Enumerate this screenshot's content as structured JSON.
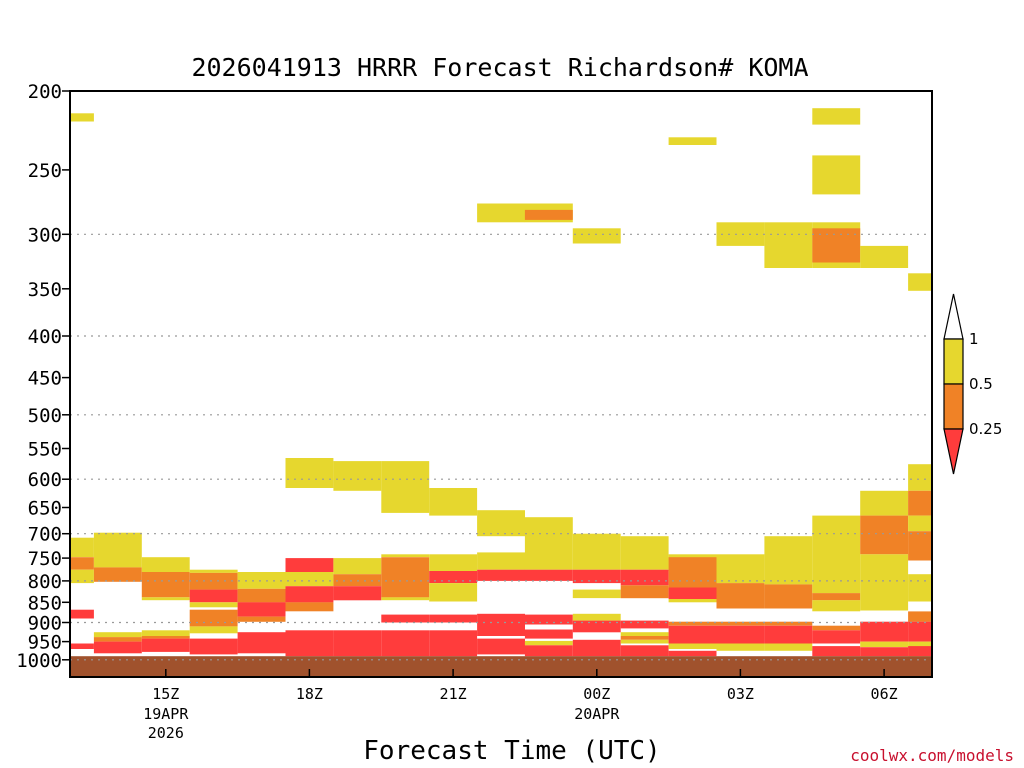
{
  "chart_data": {
    "type": "heatmap",
    "title": "2026041913 HRRR Forecast Richardson# KOMA",
    "xlabel": "Forecast Time (UTC)",
    "ylabel": "",
    "credit": "coolwx.com/models",
    "y_axis": {
      "scale": "log-pressure",
      "range_hPa": [
        1050,
        200
      ],
      "ticks": [
        "200",
        "250",
        "300",
        "350",
        "400",
        "450",
        "500",
        "550",
        "600",
        "650",
        "700",
        "750",
        "800",
        "850",
        "900",
        "950",
        "1000"
      ],
      "gridlines_hPa": [
        300,
        400,
        500,
        600,
        700,
        800,
        900,
        1000
      ]
    },
    "x_axis": {
      "range_hours": [
        13,
        31
      ],
      "ticks": [
        {
          "h": 15,
          "label": "15Z",
          "sub": [
            "19APR",
            "2026"
          ]
        },
        {
          "h": 18,
          "label": "18Z",
          "sub": []
        },
        {
          "h": 21,
          "label": "21Z",
          "sub": []
        },
        {
          "h": 24,
          "label": "00Z",
          "sub": [
            "20APR"
          ]
        },
        {
          "h": 27,
          "label": "03Z",
          "sub": []
        },
        {
          "h": 30,
          "label": "06Z",
          "sub": []
        }
      ]
    },
    "grid": true,
    "legend": {
      "position": "right",
      "levels": [
        "1",
        "0.5",
        "0.25"
      ],
      "bins": [
        {
          "range": "0.5-1",
          "color": "#e6d72e"
        },
        {
          "range": "0.25-0.5",
          "color": "#f08226"
        },
        {
          "range": "<0.25",
          "color": "#ff3c3c"
        }
      ]
    },
    "colors": {
      "yellow": "#e6d72e",
      "orange": "#f08226",
      "red": "#ff3c3c",
      "ground": "#a0522d"
    },
    "cells": [
      {
        "t0": 13.0,
        "t1": 13.5,
        "p0": 213,
        "p1": 218,
        "c": "yellow"
      },
      {
        "t0": 13.0,
        "t1": 13.5,
        "p0": 708,
        "p1": 748,
        "c": "yellow"
      },
      {
        "t0": 13.0,
        "t1": 13.5,
        "p0": 748,
        "p1": 775,
        "c": "orange"
      },
      {
        "t0": 13.0,
        "t1": 13.5,
        "p0": 775,
        "p1": 805,
        "c": "yellow"
      },
      {
        "t0": 13.0,
        "t1": 13.5,
        "p0": 868,
        "p1": 890,
        "c": "red"
      },
      {
        "t0": 13.0,
        "t1": 13.5,
        "p0": 955,
        "p1": 970,
        "c": "red"
      },
      {
        "t0": 13.5,
        "t1": 14.5,
        "p0": 698,
        "p1": 770,
        "c": "yellow"
      },
      {
        "t0": 13.5,
        "t1": 14.5,
        "p0": 770,
        "p1": 802,
        "c": "orange"
      },
      {
        "t0": 13.5,
        "t1": 14.5,
        "p0": 925,
        "p1": 938,
        "c": "yellow"
      },
      {
        "t0": 13.5,
        "t1": 14.5,
        "p0": 938,
        "p1": 950,
        "c": "orange"
      },
      {
        "t0": 13.5,
        "t1": 14.5,
        "p0": 950,
        "p1": 982,
        "c": "red"
      },
      {
        "t0": 14.5,
        "t1": 15.5,
        "p0": 748,
        "p1": 780,
        "c": "yellow"
      },
      {
        "t0": 14.5,
        "t1": 15.5,
        "p0": 780,
        "p1": 838,
        "c": "orange"
      },
      {
        "t0": 14.5,
        "t1": 15.5,
        "p0": 838,
        "p1": 845,
        "c": "yellow"
      },
      {
        "t0": 14.5,
        "t1": 15.5,
        "p0": 920,
        "p1": 935,
        "c": "yellow"
      },
      {
        "t0": 14.5,
        "t1": 15.5,
        "p0": 935,
        "p1": 942,
        "c": "orange"
      },
      {
        "t0": 14.5,
        "t1": 15.5,
        "p0": 942,
        "p1": 978,
        "c": "red"
      },
      {
        "t0": 15.5,
        "t1": 16.5,
        "p0": 775,
        "p1": 782,
        "c": "yellow"
      },
      {
        "t0": 15.5,
        "t1": 16.5,
        "p0": 782,
        "p1": 820,
        "c": "orange"
      },
      {
        "t0": 15.5,
        "t1": 16.5,
        "p0": 820,
        "p1": 850,
        "c": "red"
      },
      {
        "t0": 15.5,
        "t1": 16.5,
        "p0": 850,
        "p1": 862,
        "c": "yellow"
      },
      {
        "t0": 15.5,
        "t1": 16.5,
        "p0": 868,
        "p1": 910,
        "c": "orange"
      },
      {
        "t0": 15.5,
        "t1": 16.5,
        "p0": 910,
        "p1": 928,
        "c": "yellow"
      },
      {
        "t0": 15.5,
        "t1": 16.5,
        "p0": 942,
        "p1": 985,
        "c": "red"
      },
      {
        "t0": 16.5,
        "t1": 17.5,
        "p0": 780,
        "p1": 818,
        "c": "yellow"
      },
      {
        "t0": 16.5,
        "t1": 17.5,
        "p0": 818,
        "p1": 850,
        "c": "orange"
      },
      {
        "t0": 16.5,
        "t1": 17.5,
        "p0": 850,
        "p1": 885,
        "c": "red"
      },
      {
        "t0": 16.5,
        "t1": 17.5,
        "p0": 885,
        "p1": 898,
        "c": "orange"
      },
      {
        "t0": 16.5,
        "t1": 17.5,
        "p0": 925,
        "p1": 982,
        "c": "red"
      },
      {
        "t0": 17.5,
        "t1": 18.5,
        "p0": 565,
        "p1": 615,
        "c": "yellow"
      },
      {
        "t0": 17.5,
        "t1": 18.5,
        "p0": 750,
        "p1": 780,
        "c": "red"
      },
      {
        "t0": 17.5,
        "t1": 18.5,
        "p0": 780,
        "p1": 812,
        "c": "yellow"
      },
      {
        "t0": 17.5,
        "t1": 18.5,
        "p0": 812,
        "p1": 850,
        "c": "red"
      },
      {
        "t0": 17.5,
        "t1": 18.5,
        "p0": 850,
        "p1": 872,
        "c": "orange"
      },
      {
        "t0": 17.5,
        "t1": 18.5,
        "p0": 920,
        "p1": 990,
        "c": "red"
      },
      {
        "t0": 18.5,
        "t1": 19.5,
        "p0": 570,
        "p1": 620,
        "c": "yellow"
      },
      {
        "t0": 18.5,
        "t1": 19.5,
        "p0": 750,
        "p1": 785,
        "c": "yellow"
      },
      {
        "t0": 18.5,
        "t1": 19.5,
        "p0": 785,
        "p1": 812,
        "c": "orange"
      },
      {
        "t0": 18.5,
        "t1": 19.5,
        "p0": 812,
        "p1": 845,
        "c": "red"
      },
      {
        "t0": 18.5,
        "t1": 19.5,
        "p0": 920,
        "p1": 990,
        "c": "red"
      },
      {
        "t0": 19.5,
        "t1": 20.5,
        "p0": 570,
        "p1": 660,
        "c": "yellow"
      },
      {
        "t0": 19.5,
        "t1": 20.5,
        "p0": 742,
        "p1": 748,
        "c": "yellow"
      },
      {
        "t0": 19.5,
        "t1": 20.5,
        "p0": 748,
        "p1": 838,
        "c": "orange"
      },
      {
        "t0": 19.5,
        "t1": 20.5,
        "p0": 838,
        "p1": 845,
        "c": "yellow"
      },
      {
        "t0": 19.5,
        "t1": 20.5,
        "p0": 880,
        "p1": 900,
        "c": "red"
      },
      {
        "t0": 19.5,
        "t1": 20.5,
        "p0": 920,
        "p1": 990,
        "c": "red"
      },
      {
        "t0": 20.5,
        "t1": 21.5,
        "p0": 615,
        "p1": 665,
        "c": "yellow"
      },
      {
        "t0": 20.5,
        "t1": 21.5,
        "p0": 742,
        "p1": 778,
        "c": "yellow"
      },
      {
        "t0": 20.5,
        "t1": 21.5,
        "p0": 778,
        "p1": 805,
        "c": "red"
      },
      {
        "t0": 20.5,
        "t1": 21.5,
        "p0": 805,
        "p1": 848,
        "c": "yellow"
      },
      {
        "t0": 20.5,
        "t1": 21.5,
        "p0": 880,
        "p1": 900,
        "c": "red"
      },
      {
        "t0": 20.5,
        "t1": 21.5,
        "p0": 920,
        "p1": 990,
        "c": "red"
      },
      {
        "t0": 21.5,
        "t1": 22.5,
        "p0": 275,
        "p1": 290,
        "c": "yellow"
      },
      {
        "t0": 21.5,
        "t1": 22.5,
        "p0": 655,
        "p1": 705,
        "c": "yellow"
      },
      {
        "t0": 21.5,
        "t1": 22.5,
        "p0": 738,
        "p1": 775,
        "c": "yellow"
      },
      {
        "t0": 21.5,
        "t1": 22.5,
        "p0": 775,
        "p1": 800,
        "c": "red"
      },
      {
        "t0": 21.5,
        "t1": 22.5,
        "p0": 878,
        "p1": 935,
        "c": "red"
      },
      {
        "t0": 21.5,
        "t1": 22.5,
        "p0": 942,
        "p1": 985,
        "c": "red"
      },
      {
        "t0": 22.5,
        "t1": 23.5,
        "p0": 275,
        "p1": 290,
        "c": "yellow"
      },
      {
        "t0": 22.5,
        "t1": 23.5,
        "p0": 280,
        "p1": 288,
        "c": "orange"
      },
      {
        "t0": 22.5,
        "t1": 23.5,
        "p0": 668,
        "p1": 775,
        "c": "yellow"
      },
      {
        "t0": 22.5,
        "t1": 23.5,
        "p0": 775,
        "p1": 800,
        "c": "red"
      },
      {
        "t0": 22.5,
        "t1": 23.5,
        "p0": 880,
        "p1": 905,
        "c": "red"
      },
      {
        "t0": 22.5,
        "t1": 23.5,
        "p0": 918,
        "p1": 942,
        "c": "red"
      },
      {
        "t0": 22.5,
        "t1": 23.5,
        "p0": 948,
        "p1": 960,
        "c": "yellow"
      },
      {
        "t0": 22.5,
        "t1": 23.5,
        "p0": 960,
        "p1": 990,
        "c": "red"
      },
      {
        "t0": 23.5,
        "t1": 24.5,
        "p0": 295,
        "p1": 308,
        "c": "yellow"
      },
      {
        "t0": 23.5,
        "t1": 24.5,
        "p0": 700,
        "p1": 775,
        "c": "yellow"
      },
      {
        "t0": 23.5,
        "t1": 24.5,
        "p0": 775,
        "p1": 805,
        "c": "red"
      },
      {
        "t0": 23.5,
        "t1": 24.5,
        "p0": 820,
        "p1": 840,
        "c": "yellow"
      },
      {
        "t0": 23.5,
        "t1": 24.5,
        "p0": 878,
        "p1": 895,
        "c": "yellow"
      },
      {
        "t0": 23.5,
        "t1": 24.5,
        "p0": 895,
        "p1": 925,
        "c": "red"
      },
      {
        "t0": 23.5,
        "t1": 24.5,
        "p0": 945,
        "p1": 990,
        "c": "red"
      },
      {
        "t0": 24.5,
        "t1": 25.5,
        "p0": 705,
        "p1": 775,
        "c": "yellow"
      },
      {
        "t0": 24.5,
        "t1": 25.5,
        "p0": 775,
        "p1": 810,
        "c": "red"
      },
      {
        "t0": 24.5,
        "t1": 25.5,
        "p0": 810,
        "p1": 840,
        "c": "orange"
      },
      {
        "t0": 24.5,
        "t1": 25.5,
        "p0": 895,
        "p1": 915,
        "c": "red"
      },
      {
        "t0": 24.5,
        "t1": 25.5,
        "p0": 925,
        "p1": 935,
        "c": "yellow"
      },
      {
        "t0": 24.5,
        "t1": 25.5,
        "p0": 935,
        "p1": 945,
        "c": "orange"
      },
      {
        "t0": 24.5,
        "t1": 25.5,
        "p0": 945,
        "p1": 955,
        "c": "yellow"
      },
      {
        "t0": 24.5,
        "t1": 25.5,
        "p0": 960,
        "p1": 990,
        "c": "red"
      },
      {
        "t0": 25.5,
        "t1": 26.5,
        "p0": 228,
        "p1": 233,
        "c": "yellow"
      },
      {
        "t0": 25.5,
        "t1": 26.5,
        "p0": 742,
        "p1": 778,
        "c": "yellow"
      },
      {
        "t0": 25.5,
        "t1": 26.5,
        "p0": 748,
        "p1": 815,
        "c": "orange"
      },
      {
        "t0": 25.5,
        "t1": 26.5,
        "p0": 815,
        "p1": 842,
        "c": "red"
      },
      {
        "t0": 25.5,
        "t1": 26.5,
        "p0": 842,
        "p1": 850,
        "c": "yellow"
      },
      {
        "t0": 25.5,
        "t1": 26.5,
        "p0": 898,
        "p1": 908,
        "c": "orange"
      },
      {
        "t0": 25.5,
        "t1": 26.5,
        "p0": 908,
        "p1": 955,
        "c": "red"
      },
      {
        "t0": 25.5,
        "t1": 26.5,
        "p0": 955,
        "p1": 970,
        "c": "yellow"
      },
      {
        "t0": 25.5,
        "t1": 26.5,
        "p0": 975,
        "p1": 990,
        "c": "red"
      },
      {
        "t0": 26.5,
        "t1": 27.5,
        "p0": 290,
        "p1": 310,
        "c": "yellow"
      },
      {
        "t0": 26.5,
        "t1": 27.5,
        "p0": 742,
        "p1": 805,
        "c": "yellow"
      },
      {
        "t0": 26.5,
        "t1": 27.5,
        "p0": 805,
        "p1": 865,
        "c": "orange"
      },
      {
        "t0": 26.5,
        "t1": 27.5,
        "p0": 898,
        "p1": 908,
        "c": "orange"
      },
      {
        "t0": 26.5,
        "t1": 27.5,
        "p0": 908,
        "p1": 955,
        "c": "red"
      },
      {
        "t0": 26.5,
        "t1": 27.5,
        "p0": 955,
        "p1": 975,
        "c": "yellow"
      },
      {
        "t0": 27.5,
        "t1": 28.5,
        "p0": 290,
        "p1": 330,
        "c": "yellow"
      },
      {
        "t0": 27.5,
        "t1": 28.5,
        "p0": 705,
        "p1": 808,
        "c": "yellow"
      },
      {
        "t0": 27.5,
        "t1": 28.5,
        "p0": 808,
        "p1": 865,
        "c": "orange"
      },
      {
        "t0": 27.5,
        "t1": 28.5,
        "p0": 898,
        "p1": 908,
        "c": "orange"
      },
      {
        "t0": 27.5,
        "t1": 28.5,
        "p0": 908,
        "p1": 955,
        "c": "red"
      },
      {
        "t0": 27.5,
        "t1": 28.5,
        "p0": 955,
        "p1": 975,
        "c": "yellow"
      },
      {
        "t0": 28.5,
        "t1": 29.5,
        "p0": 210,
        "p1": 220,
        "c": "yellow"
      },
      {
        "t0": 28.5,
        "t1": 29.5,
        "p0": 240,
        "p1": 268,
        "c": "yellow"
      },
      {
        "t0": 28.5,
        "t1": 29.5,
        "p0": 290,
        "p1": 330,
        "c": "yellow"
      },
      {
        "t0": 28.5,
        "t1": 29.5,
        "p0": 295,
        "p1": 325,
        "c": "orange"
      },
      {
        "t0": 28.5,
        "t1": 29.5,
        "p0": 665,
        "p1": 828,
        "c": "yellow"
      },
      {
        "t0": 28.5,
        "t1": 29.5,
        "p0": 828,
        "p1": 845,
        "c": "orange"
      },
      {
        "t0": 28.5,
        "t1": 29.5,
        "p0": 845,
        "p1": 872,
        "c": "yellow"
      },
      {
        "t0": 28.5,
        "t1": 29.5,
        "p0": 908,
        "p1": 920,
        "c": "orange"
      },
      {
        "t0": 28.5,
        "t1": 29.5,
        "p0": 920,
        "p1": 955,
        "c": "red"
      },
      {
        "t0": 28.5,
        "t1": 29.5,
        "p0": 962,
        "p1": 990,
        "c": "red"
      },
      {
        "t0": 29.5,
        "t1": 30.5,
        "p0": 310,
        "p1": 330,
        "c": "yellow"
      },
      {
        "t0": 29.5,
        "t1": 30.5,
        "p0": 620,
        "p1": 665,
        "c": "yellow"
      },
      {
        "t0": 29.5,
        "t1": 30.5,
        "p0": 665,
        "p1": 742,
        "c": "orange"
      },
      {
        "t0": 29.5,
        "t1": 30.5,
        "p0": 742,
        "p1": 870,
        "c": "yellow"
      },
      {
        "t0": 29.5,
        "t1": 30.5,
        "p0": 898,
        "p1": 950,
        "c": "red"
      },
      {
        "t0": 29.5,
        "t1": 30.5,
        "p0": 950,
        "p1": 965,
        "c": "yellow"
      },
      {
        "t0": 29.5,
        "t1": 30.5,
        "p0": 965,
        "p1": 990,
        "c": "red"
      },
      {
        "t0": 30.5,
        "t1": 31.0,
        "p0": 335,
        "p1": 352,
        "c": "yellow"
      },
      {
        "t0": 30.5,
        "t1": 31.0,
        "p0": 575,
        "p1": 620,
        "c": "yellow"
      },
      {
        "t0": 30.5,
        "t1": 31.0,
        "p0": 620,
        "p1": 665,
        "c": "orange"
      },
      {
        "t0": 30.5,
        "t1": 31.0,
        "p0": 665,
        "p1": 695,
        "c": "yellow"
      },
      {
        "t0": 30.5,
        "t1": 31.0,
        "p0": 695,
        "p1": 755,
        "c": "orange"
      },
      {
        "t0": 30.5,
        "t1": 31.0,
        "p0": 785,
        "p1": 848,
        "c": "yellow"
      },
      {
        "t0": 30.5,
        "t1": 31.0,
        "p0": 872,
        "p1": 898,
        "c": "orange"
      },
      {
        "t0": 30.5,
        "t1": 31.0,
        "p0": 898,
        "p1": 950,
        "c": "red"
      },
      {
        "t0": 30.5,
        "t1": 31.0,
        "p0": 950,
        "p1": 990,
        "c": "yellow"
      },
      {
        "t0": 30.5,
        "t1": 31.0,
        "p0": 962,
        "p1": 990,
        "c": "red"
      }
    ],
    "ground": {
      "p0": 990,
      "p1": 1050,
      "c": "ground"
    }
  }
}
